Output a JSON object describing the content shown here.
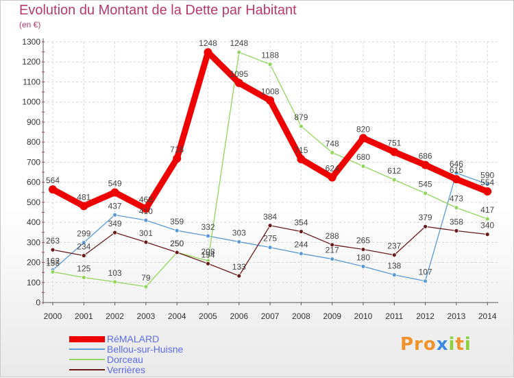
{
  "title": "Evolution du Montant de la Dette par Habitant",
  "subtitle": "(en €)",
  "brand": {
    "p1": "Pro",
    "x": "x",
    "i1": "i",
    "t": "t",
    "i2": "i"
  },
  "chart_data": {
    "type": "line",
    "title": "Evolution du Montant de la Dette par Habitant",
    "subtitle": "(en €)",
    "xlabel": "",
    "ylabel": "",
    "x": [
      "2000",
      "2001",
      "2002",
      "2003",
      "2004",
      "2005",
      "2006",
      "2007",
      "2008",
      "2009",
      "2010",
      "2011",
      "2012",
      "2013",
      "2014"
    ],
    "ylim": [
      0,
      1300
    ],
    "yticks": [
      0,
      100,
      200,
      300,
      400,
      500,
      600,
      700,
      800,
      900,
      1000,
      1100,
      1200,
      1300
    ],
    "grid": true,
    "legend_position": "bottom-left",
    "series": [
      {
        "name": "RéMALARD",
        "color": "#ee0000",
        "values": [
          564,
          481,
          549,
          468,
          718,
          1248,
          1095,
          1008,
          715,
          624,
          820,
          751,
          686,
          615,
          554
        ]
      },
      {
        "name": "Bellou-sur-Huisne",
        "color": "#5a9ad6",
        "values": [
          162,
          299,
          437,
          410,
          359,
          332,
          303,
          275,
          244,
          217,
          180,
          138,
          107,
          646,
          590
        ]
      },
      {
        "name": "Dorceau",
        "color": "#8fd65a",
        "values": [
          153,
          125,
          103,
          79,
          250,
          208,
          1248,
          1188,
          879,
          748,
          680,
          612,
          545,
          473,
          417
        ]
      },
      {
        "name": "Verrières",
        "color": "#6b1a1a",
        "values": [
          263,
          234,
          349,
          301,
          250,
          194,
          133,
          384,
          354,
          288,
          265,
          237,
          379,
          358,
          340
        ]
      }
    ]
  }
}
